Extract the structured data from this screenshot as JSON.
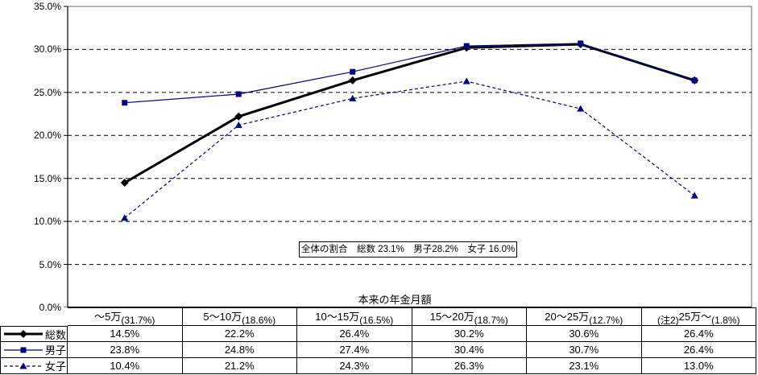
{
  "chart_data": {
    "type": "line",
    "title": "",
    "xlabel": "本来の年金月額",
    "ylabel": "",
    "ylim": [
      0,
      35
    ],
    "ytick_step": 5,
    "ytick_suffix": "%",
    "grid": true,
    "legend_position": "table-left-column",
    "categories": [
      "～5万(31.7%)",
      "5～10万(18.6%)",
      "10～15万(16.5%)",
      "15～20万(18.7%)",
      "20～25万(12.7%)",
      "(注2)25万～(1.8%)"
    ],
    "category_parts": [
      {
        "pre": "",
        "main": "～5万",
        "sub": "(31.7%)"
      },
      {
        "pre": "",
        "main": "5～10万",
        "sub": "(18.6%)"
      },
      {
        "pre": "",
        "main": "10～15万",
        "sub": "(16.5%)"
      },
      {
        "pre": "",
        "main": "15～20万",
        "sub": "(18.7%)"
      },
      {
        "pre": "",
        "main": "20～25万",
        "sub": "(12.7%)"
      },
      {
        "pre": "(注2)",
        "main": "25万～",
        "sub": "(1.8%)"
      }
    ],
    "series": [
      {
        "name": "総数",
        "values": [
          14.5,
          22.2,
          26.4,
          30.2,
          30.6,
          26.4
        ],
        "color": "#000000",
        "marker": "diamond",
        "line_width": 3,
        "dash": ""
      },
      {
        "name": "男子",
        "values": [
          23.8,
          24.8,
          27.4,
          30.4,
          30.7,
          26.4
        ],
        "color": "#000080",
        "marker": "square",
        "line_width": 1.2,
        "dash": ""
      },
      {
        "name": "女子",
        "values": [
          10.4,
          21.2,
          24.3,
          26.3,
          23.1,
          13.0
        ],
        "color": "#000080",
        "marker": "triangle",
        "line_width": 1.2,
        "dash": "4 3"
      }
    ],
    "annotation": "全体の割合　総数 23.1%　男子28.2%　女子 16.0%",
    "colors": {
      "axis": "#000000",
      "grid": "#000000",
      "plot_border": "#808080",
      "background": "#ffffff"
    }
  }
}
